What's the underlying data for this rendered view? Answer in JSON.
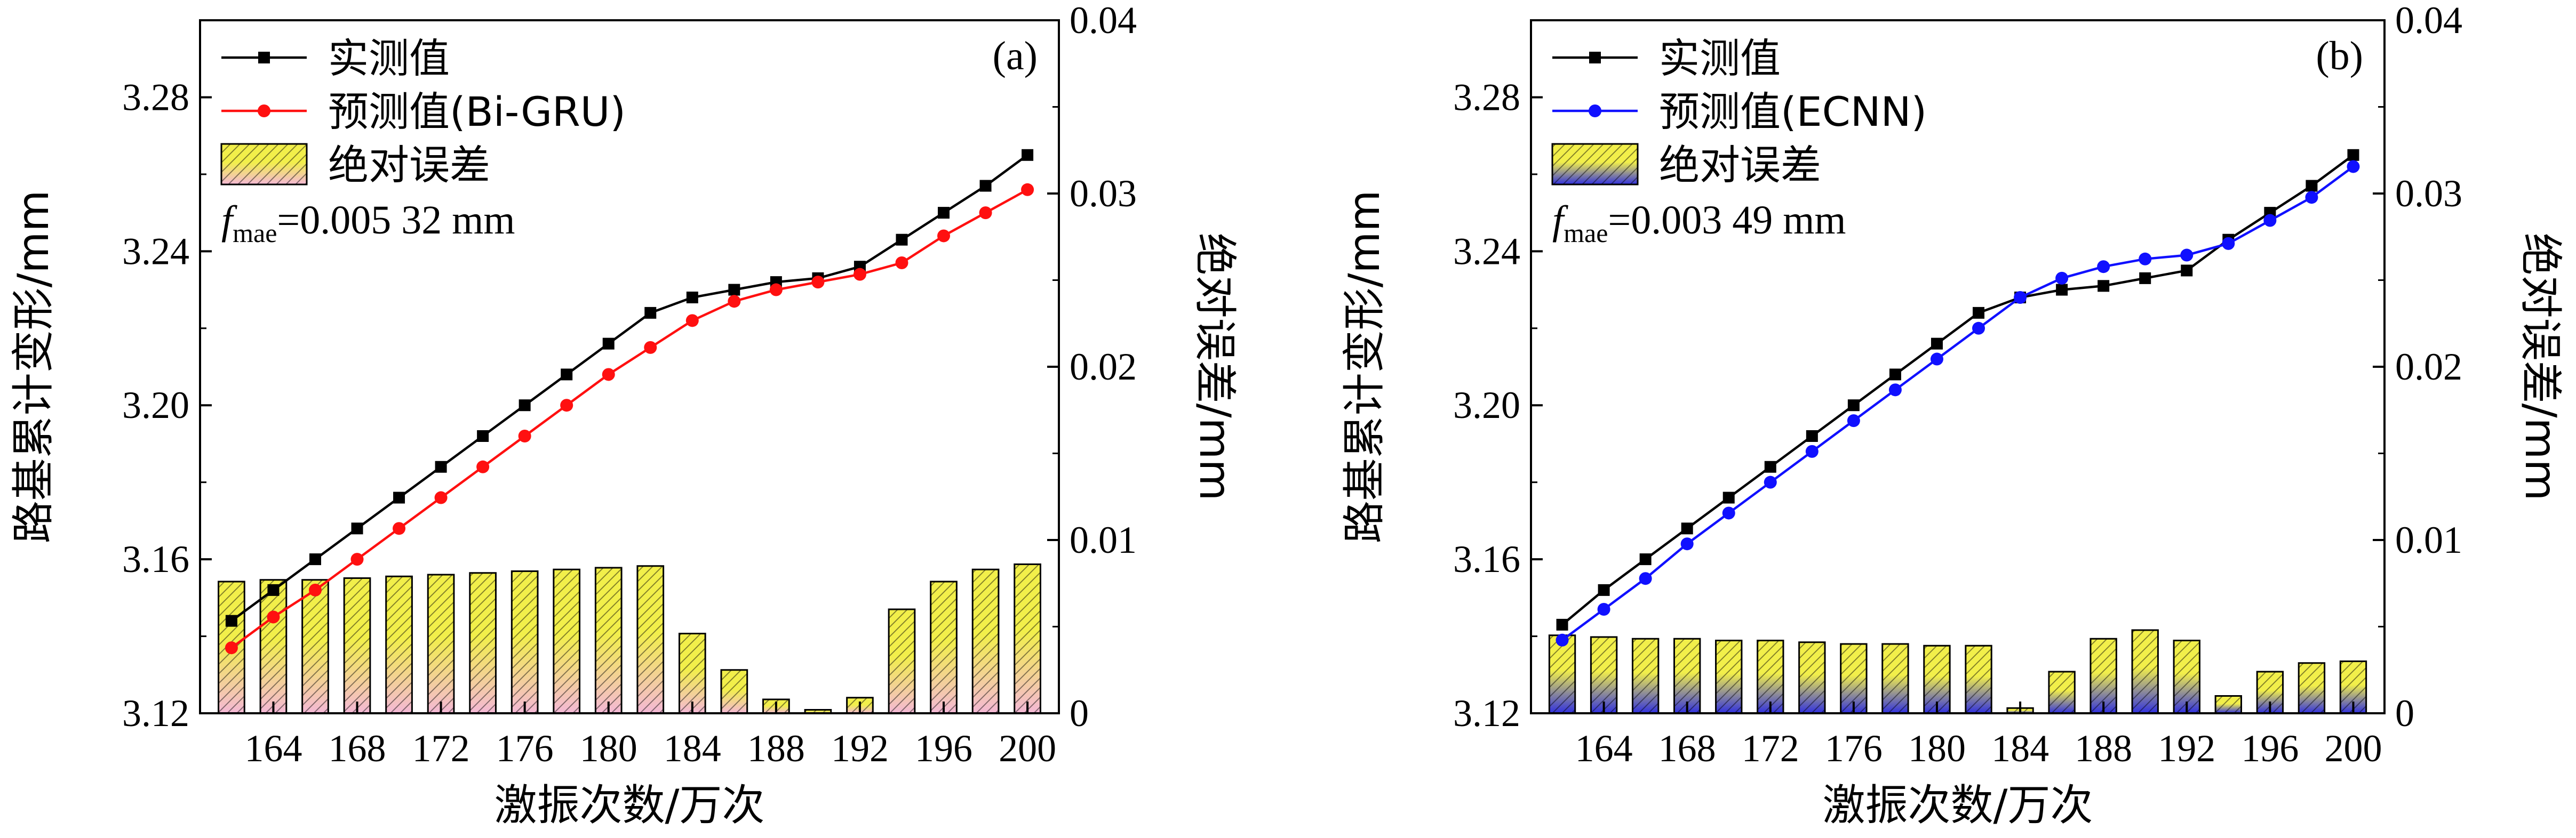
{
  "chart_data": [
    {
      "type": "bar+line",
      "panel_label": "(a)",
      "categories": [
        162,
        164,
        166,
        168,
        170,
        172,
        174,
        176,
        178,
        180,
        182,
        184,
        186,
        188,
        190,
        192,
        194,
        196,
        198,
        200
      ],
      "xticks": [
        "164",
        "168",
        "172",
        "176",
        "180",
        "184",
        "188",
        "192",
        "196",
        "200"
      ],
      "xlabel": "激振次数/万次",
      "ylabel_left": "路基累计变形/mm",
      "ylabel_right": "绝对误差/mm",
      "ylim_left": [
        3.12,
        3.3
      ],
      "ylim_right": [
        0,
        0.04
      ],
      "yticks_left": [
        "3.12",
        "3.16",
        "3.20",
        "3.24",
        "3.28"
      ],
      "yticks_right": [
        "0",
        "0.01",
        "0.02",
        "0.03",
        "0.04"
      ],
      "series": [
        {
          "name": "实测值",
          "color": "#000000",
          "marker": "square",
          "values": [
            3.144,
            3.152,
            3.16,
            3.168,
            3.176,
            3.184,
            3.192,
            3.2,
            3.208,
            3.216,
            3.224,
            3.228,
            3.23,
            3.232,
            3.233,
            3.236,
            3.243,
            3.25,
            3.257,
            3.265
          ]
        },
        {
          "name": "预测值(Bi-GRU)",
          "color": "#ff1010",
          "marker": "circle",
          "values": [
            3.137,
            3.145,
            3.152,
            3.16,
            3.168,
            3.176,
            3.184,
            3.192,
            3.2,
            3.208,
            3.215,
            3.222,
            3.227,
            3.23,
            3.232,
            3.234,
            3.237,
            3.244,
            3.25,
            3.256
          ]
        }
      ],
      "bar_series": {
        "name": "绝对误差",
        "axis": "right",
        "color_top": "#f2ef4a",
        "color_bottom": "#f4b8d6",
        "values": [
          0.0076,
          0.0077,
          0.0077,
          0.0078,
          0.0079,
          0.008,
          0.0081,
          0.0082,
          0.0083,
          0.0084,
          0.0085,
          0.0046,
          0.0025,
          0.0008,
          0.0002,
          0.0009,
          0.006,
          0.0076,
          0.0083,
          0.0086
        ]
      },
      "legend": [
        "实测值",
        "预测值(Bi-GRU)",
        "绝对误差"
      ],
      "annotation": {
        "symbol": "f",
        "subscript": "mae",
        "value": "=0.005 32 mm"
      }
    },
    {
      "type": "bar+line",
      "panel_label": "(b)",
      "categories": [
        162,
        164,
        166,
        168,
        170,
        172,
        174,
        176,
        178,
        180,
        182,
        184,
        186,
        188,
        190,
        192,
        194,
        196,
        198,
        200
      ],
      "xticks": [
        "164",
        "168",
        "172",
        "176",
        "180",
        "184",
        "188",
        "192",
        "196",
        "200"
      ],
      "xlabel": "激振次数/万次",
      "ylabel_left": "路基累计变形/mm",
      "ylabel_right": "绝对误差/mm",
      "ylim_left": [
        3.12,
        3.3
      ],
      "ylim_right": [
        0,
        0.04
      ],
      "yticks_left": [
        "3.12",
        "3.16",
        "3.20",
        "3.24",
        "3.28"
      ],
      "yticks_right": [
        "0",
        "0.01",
        "0.02",
        "0.03",
        "0.04"
      ],
      "series": [
        {
          "name": "实测值",
          "color": "#000000",
          "marker": "square",
          "values": [
            3.143,
            3.152,
            3.16,
            3.168,
            3.176,
            3.184,
            3.192,
            3.2,
            3.208,
            3.216,
            3.224,
            3.228,
            3.23,
            3.231,
            3.233,
            3.235,
            3.243,
            3.25,
            3.257,
            3.265
          ]
        },
        {
          "name": "预测值(ECNN)",
          "color": "#1010ff",
          "marker": "circle",
          "values": [
            3.139,
            3.147,
            3.155,
            3.164,
            3.172,
            3.18,
            3.188,
            3.196,
            3.204,
            3.212,
            3.22,
            3.228,
            3.233,
            3.236,
            3.238,
            3.239,
            3.242,
            3.248,
            3.254,
            3.262
          ]
        }
      ],
      "bar_series": {
        "name": "绝对误差",
        "axis": "right",
        "color_top": "#f2ef4a",
        "color_bottom": "#3030e0",
        "values": [
          0.0045,
          0.0044,
          0.0043,
          0.0043,
          0.0042,
          0.0042,
          0.0041,
          0.004,
          0.004,
          0.0039,
          0.0039,
          0.0003,
          0.0024,
          0.0043,
          0.0048,
          0.0042,
          0.001,
          0.0024,
          0.0029,
          0.003
        ]
      },
      "legend": [
        "实测值",
        "预测值(ECNN)",
        "绝对误差"
      ],
      "annotation": {
        "symbol": "f",
        "subscript": "mae",
        "value": "=0.003 49 mm"
      }
    }
  ]
}
